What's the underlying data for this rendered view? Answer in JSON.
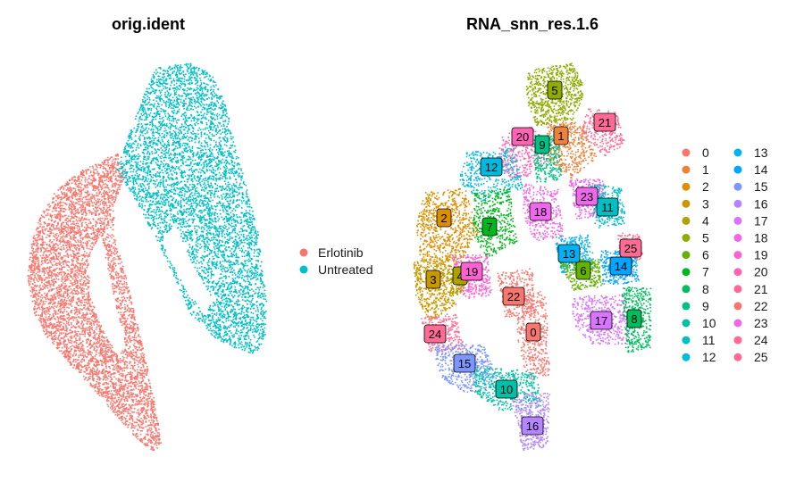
{
  "chart_data": [
    {
      "type": "scatter",
      "title": "orig.ident",
      "xlabel": "",
      "ylabel": "",
      "legend": {
        "position": "right",
        "entries": [
          {
            "label": "Erlotinib",
            "color": "#F8766D"
          },
          {
            "label": "Untreated",
            "color": "#00BFC4"
          }
        ]
      }
    },
    {
      "type": "scatter",
      "title": "RNA_snn_res.1.6",
      "xlabel": "",
      "ylabel": "",
      "legend": {
        "position": "right",
        "columns": 2,
        "entries": [
          {
            "label": "0",
            "color": "#F8766D"
          },
          {
            "label": "1",
            "color": "#EC8239"
          },
          {
            "label": "2",
            "color": "#DB8E00"
          },
          {
            "label": "3",
            "color": "#C79800"
          },
          {
            "label": "4",
            "color": "#AEA200"
          },
          {
            "label": "5",
            "color": "#8FAA00"
          },
          {
            "label": "6",
            "color": "#64B200"
          },
          {
            "label": "7",
            "color": "#00B81B"
          },
          {
            "label": "8",
            "color": "#00BD5C"
          },
          {
            "label": "9",
            "color": "#00C085"
          },
          {
            "label": "10",
            "color": "#00C1A7"
          },
          {
            "label": "11",
            "color": "#00BFC4"
          },
          {
            "label": "12",
            "color": "#00BADE"
          },
          {
            "label": "13",
            "color": "#00B2F3"
          },
          {
            "label": "14",
            "color": "#00A6FF"
          },
          {
            "label": "15",
            "color": "#7C96FF"
          },
          {
            "label": "16",
            "color": "#B385FF"
          },
          {
            "label": "17",
            "color": "#D874FD"
          },
          {
            "label": "18",
            "color": "#EF67EB"
          },
          {
            "label": "19",
            "color": "#FD61D3"
          },
          {
            "label": "20",
            "color": "#FF63B6"
          },
          {
            "label": "21",
            "color": "#FF6B94"
          },
          {
            "label": "22",
            "color": "#F8766D"
          },
          {
            "label": "23",
            "color": "#EF67EB"
          },
          {
            "label": "24",
            "color": "#FF6B94"
          },
          {
            "label": "25",
            "color": "#FF6B94"
          }
        ]
      },
      "cluster_labels": [
        "0",
        "1",
        "2",
        "3",
        "4",
        "5",
        "6",
        "7",
        "8",
        "9",
        "10",
        "11",
        "12",
        "13",
        "14",
        "15",
        "16",
        "17",
        "18",
        "19",
        "20",
        "21",
        "22",
        "23",
        "24",
        "25"
      ]
    }
  ]
}
